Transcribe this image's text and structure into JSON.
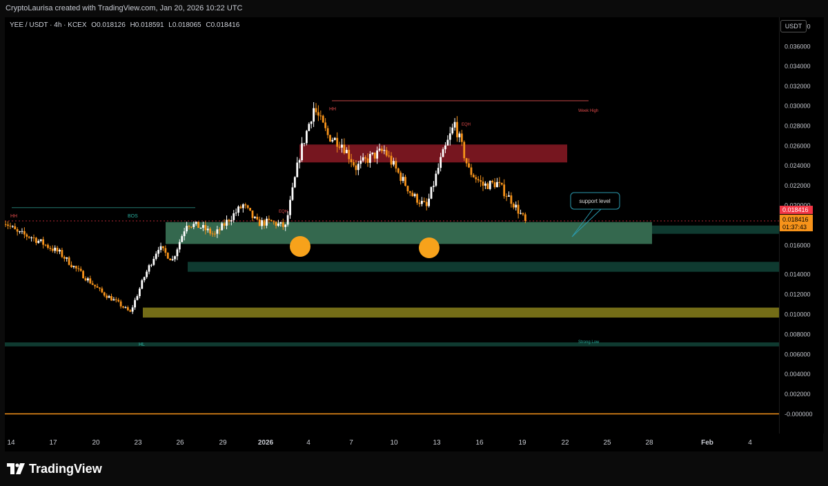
{
  "caption": "CryptoLaurisa created with TradingView.com, Jan 20, 2026 10:22 UTC",
  "symbol": {
    "pair": "YEE / USDT · 4h · KCEX",
    "open": "O0.018126",
    "high": "H0.018591",
    "low": "L0.018065",
    "close": "C0.018416"
  },
  "currency": "USDT",
  "brand": "TradingView",
  "colors": {
    "up": "#ffffff",
    "down": "#f7931a",
    "resistance_zone": "#8b1a24",
    "support_zone": "#3d7a5c",
    "dark_zone": "#0f3a30",
    "yellow_zone": "#7a7318",
    "price_line": "#f23645",
    "marker": "#f7a21b",
    "zero_line": "#f7931a"
  },
  "chart_data": {
    "type": "candlestick",
    "timeframe": "4h",
    "ylim": [
      -0.001,
      0.0395
    ],
    "y_ticks": [
      "0.038000",
      "0.036000",
      "0.034000",
      "0.032000",
      "0.030000",
      "0.028000",
      "0.026000",
      "0.024000",
      "0.022000",
      "0.020000",
      "0.016000",
      "0.014000",
      "0.012000",
      "0.010000",
      "0.008000",
      "0.006000",
      "0.004000",
      "0.002000",
      "-0.000000"
    ],
    "x_ticks": [
      "14",
      "17",
      "20",
      "23",
      "26",
      "29",
      "2026",
      "4",
      "7",
      "10",
      "13",
      "16",
      "19",
      "22",
      "25",
      "28",
      "Feb",
      "4"
    ],
    "close_path": [
      [
        "2025-12-14",
        0.0185
      ],
      [
        "2025-12-15",
        0.0172
      ],
      [
        "2025-12-16",
        0.0168
      ],
      [
        "2025-12-17",
        0.016
      ],
      [
        "2025-12-18",
        0.0152
      ],
      [
        "2025-12-19",
        0.0138
      ],
      [
        "2025-12-20",
        0.0125
      ],
      [
        "2025-12-21",
        0.0112
      ],
      [
        "2025-12-22",
        0.0103
      ],
      [
        "2025-12-23",
        0.0092
      ],
      [
        "2025-12-24",
        0.0128
      ],
      [
        "2025-12-25",
        0.0158
      ],
      [
        "2025-12-26",
        0.0145
      ],
      [
        "2025-12-27",
        0.0182
      ],
      [
        "2025-12-28",
        0.0178
      ],
      [
        "2025-12-29",
        0.017
      ],
      [
        "2025-12-30",
        0.0186
      ],
      [
        "2025-12-31",
        0.02
      ],
      [
        "2026-01-01",
        0.0182
      ],
      [
        "2026-01-02",
        0.0183
      ],
      [
        "2026-01-03",
        0.0178
      ],
      [
        "2026-01-04",
        0.025
      ],
      [
        "2026-01-05",
        0.0298
      ],
      [
        "2026-01-06",
        0.027
      ],
      [
        "2026-01-07",
        0.0262
      ],
      [
        "2026-01-08",
        0.0238
      ],
      [
        "2026-01-09",
        0.0248
      ],
      [
        "2026-01-10",
        0.0255
      ],
      [
        "2026-01-11",
        0.0232
      ],
      [
        "2026-01-12",
        0.021
      ],
      [
        "2026-01-13",
        0.0198
      ],
      [
        "2026-01-14",
        0.0245
      ],
      [
        "2026-01-15",
        0.0282
      ],
      [
        "2026-01-16",
        0.0235
      ],
      [
        "2026-01-17",
        0.022
      ],
      [
        "2026-01-18",
        0.0222
      ],
      [
        "2026-01-19",
        0.0205
      ],
      [
        "2026-01-20",
        0.0184
      ]
    ],
    "zones": [
      {
        "name": "resistance",
        "from": 0.0243,
        "to": 0.0261
      },
      {
        "name": "support",
        "from": 0.0161,
        "to": 0.0183
      },
      {
        "name": "lower-demand",
        "from": 0.0133,
        "to": 0.0143
      },
      {
        "name": "strong-low",
        "from": 0.0087,
        "to": 0.0097
      },
      {
        "name": "floor",
        "from": 0.0058,
        "to": 0.0062
      }
    ],
    "levels": [
      {
        "name": "week-high",
        "price": 0.0305
      },
      {
        "name": "bos",
        "price": 0.0194
      },
      {
        "name": "current",
        "price": 0.018416
      }
    ],
    "annotations": {
      "hh_left": "HH",
      "bos": "BOS",
      "eqh_left": "EQH",
      "hh_top": "HH",
      "eqh_right": "EQH",
      "week_high": "Week High",
      "hl": "HL",
      "strong_low": "Strong Low",
      "callout": "support level"
    },
    "price_labels": {
      "last": "0.018416",
      "current": "0.018416",
      "countdown": "01:37:43"
    }
  }
}
